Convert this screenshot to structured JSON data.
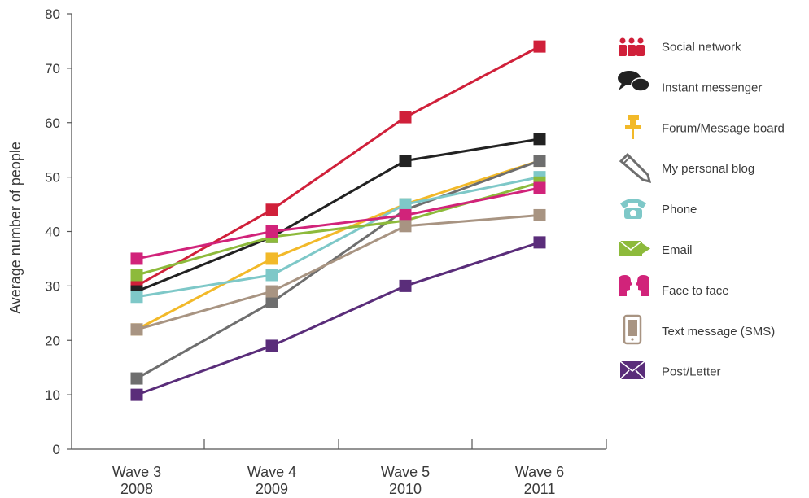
{
  "chart_data": {
    "type": "line",
    "ylabel": "Average number of people",
    "xlabel": "",
    "ylim": [
      0,
      80
    ],
    "yticks": [
      0,
      10,
      20,
      30,
      40,
      50,
      60,
      70,
      80
    ],
    "categories": [
      {
        "wave": "Wave 3",
        "year": "2008"
      },
      {
        "wave": "Wave 4",
        "year": "2009"
      },
      {
        "wave": "Wave 5",
        "year": "2010"
      },
      {
        "wave": "Wave 6",
        "year": "2011"
      }
    ],
    "legend_position": "right",
    "series": [
      {
        "name": "Social network",
        "color": "#d0203a",
        "icon": "people-group-icon",
        "values": [
          30,
          44,
          61,
          74
        ]
      },
      {
        "name": "Instant messenger",
        "color": "#222222",
        "icon": "speech-bubbles-icon",
        "values": [
          29,
          39,
          53,
          57
        ]
      },
      {
        "name": "Forum/Message board",
        "color": "#f2b929",
        "icon": "pushpin-icon",
        "values": [
          22,
          35,
          45,
          53
        ]
      },
      {
        "name": "My personal blog",
        "color": "#6e6e6e",
        "icon": "pencil-icon",
        "values": [
          13,
          27,
          44,
          53
        ]
      },
      {
        "name": "Phone",
        "color": "#7ec8c8",
        "icon": "telephone-icon",
        "values": [
          28,
          32,
          45,
          50
        ]
      },
      {
        "name": "Email",
        "color": "#8dba3b",
        "icon": "envelope-arrow-icon",
        "values": [
          32,
          39,
          42,
          49
        ]
      },
      {
        "name": "Face to face",
        "color": "#d1237a",
        "icon": "faces-icon",
        "values": [
          35,
          40,
          43,
          48
        ]
      },
      {
        "name": "Text message (SMS)",
        "color": "#a89482",
        "icon": "mobile-phone-icon",
        "values": [
          22,
          29,
          41,
          43
        ]
      },
      {
        "name": "Post/Letter",
        "color": "#5a2d7a",
        "icon": "envelope-icon",
        "values": [
          10,
          19,
          30,
          38
        ]
      }
    ]
  }
}
